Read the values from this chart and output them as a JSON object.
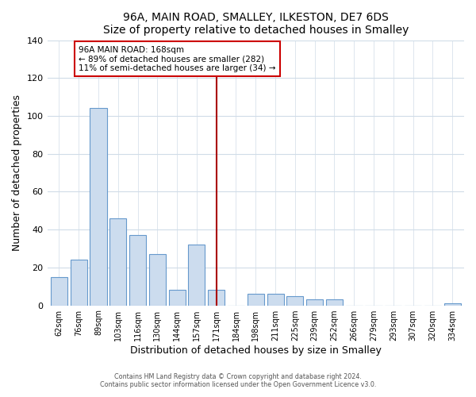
{
  "title": "96A, MAIN ROAD, SMALLEY, ILKESTON, DE7 6DS",
  "subtitle": "Size of property relative to detached houses in Smalley",
  "xlabel": "Distribution of detached houses by size in Smalley",
  "ylabel": "Number of detached properties",
  "bar_labels": [
    "62sqm",
    "76sqm",
    "89sqm",
    "103sqm",
    "116sqm",
    "130sqm",
    "144sqm",
    "157sqm",
    "171sqm",
    "184sqm",
    "198sqm",
    "211sqm",
    "225sqm",
    "239sqm",
    "252sqm",
    "266sqm",
    "279sqm",
    "293sqm",
    "307sqm",
    "320sqm",
    "334sqm"
  ],
  "bar_values": [
    15,
    24,
    104,
    46,
    37,
    27,
    8,
    32,
    8,
    0,
    6,
    6,
    5,
    3,
    3,
    0,
    0,
    0,
    0,
    0,
    1
  ],
  "bar_color": "#ccdcee",
  "bar_edge_color": "#6699cc",
  "ylim": [
    0,
    140
  ],
  "yticks": [
    0,
    20,
    40,
    60,
    80,
    100,
    120,
    140
  ],
  "vline_x_index": 8,
  "vline_color": "#aa0000",
  "annotation_title": "96A MAIN ROAD: 168sqm",
  "annotation_line1": "← 89% of detached houses are smaller (282)",
  "annotation_line2": "11% of semi-detached houses are larger (34) →",
  "annotation_box_color": "#ffffff",
  "annotation_box_edge": "#cc0000",
  "footer1": "Contains HM Land Registry data © Crown copyright and database right 2024.",
  "footer2": "Contains public sector information licensed under the Open Government Licence v3.0.",
  "background_color": "#ffffff",
  "plot_bg_color": "#ffffff",
  "grid_color": "#d0dce8"
}
